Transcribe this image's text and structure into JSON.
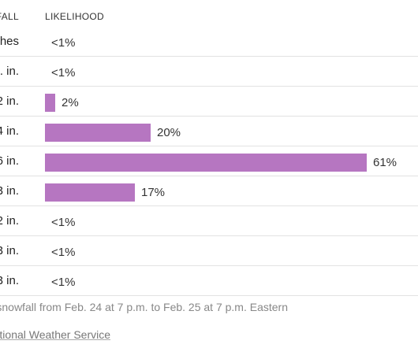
{
  "header": {
    "left_label": "FALL",
    "right_label": "LIKELIHOOD"
  },
  "chart_data": {
    "type": "bar",
    "orientation": "horizontal",
    "categories": [
      "ches",
      ". in.",
      "2 in.",
      "4 in.",
      "6 in.",
      "3 in.",
      "2 in.",
      "3 in.",
      "3 in."
    ],
    "values": [
      0.5,
      0.5,
      2,
      20,
      61,
      17,
      0.5,
      0.5,
      0.5
    ],
    "value_labels": [
      "<1%",
      "<1%",
      "2%",
      "20%",
      "61%",
      "17%",
      "<1%",
      "<1%",
      "<1%"
    ],
    "bar_color": "#b676c1",
    "xlim": [
      0,
      100
    ]
  },
  "note": "l snowfall from Feb. 24 at 7 p.m. to Feb. 25 at 7 p.m. Eastern",
  "source": "ational Weather Service"
}
